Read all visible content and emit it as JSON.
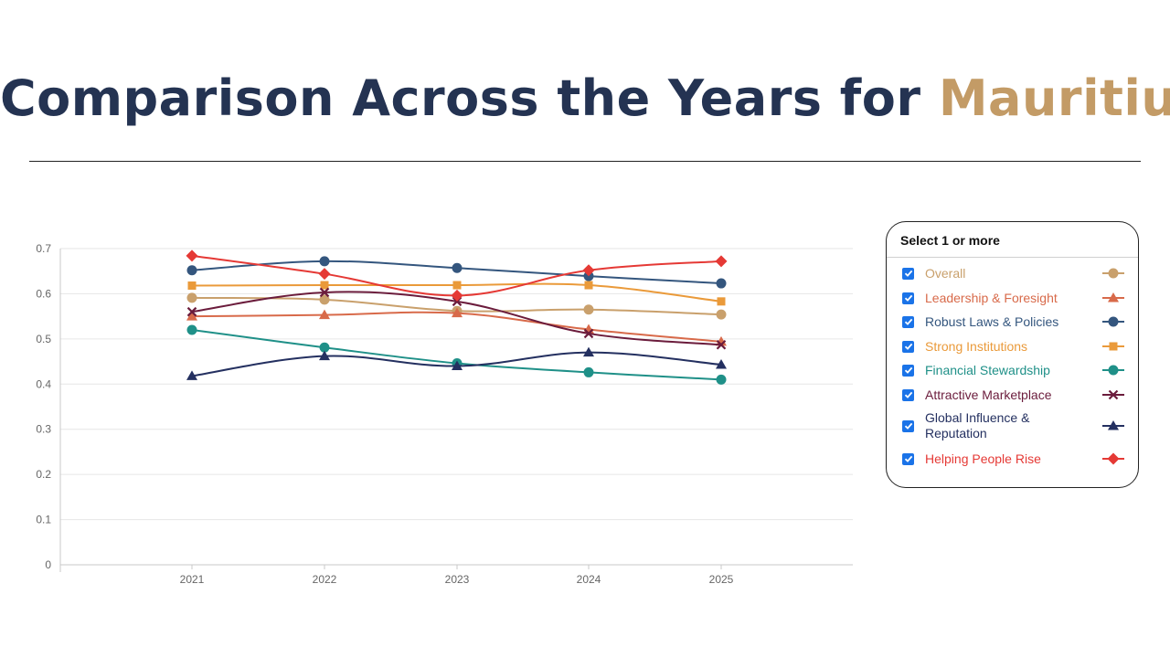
{
  "page": {
    "title_prefix": "Comparison Across the Years for ",
    "title_country": "Mauritius"
  },
  "legend": {
    "header": "Select 1 or more"
  },
  "colors": {
    "title": "#243352",
    "accent": "#c39b66",
    "checkbox": "#1a73e8"
  },
  "chart_data": {
    "type": "line",
    "categories": [
      "2021",
      "2022",
      "2023",
      "2024",
      "2025"
    ],
    "ylim": [
      0,
      0.7
    ],
    "yticks": [
      "0",
      "0.1",
      "0.2",
      "0.3",
      "0.4",
      "0.5",
      "0.6",
      "0.7"
    ],
    "grid": true,
    "legend_position": "right",
    "series": [
      {
        "name": "Overall",
        "color": "#c9a06c",
        "marker": "circle",
        "checked": true,
        "values": [
          0.591,
          0.587,
          0.562,
          0.565,
          0.554
        ]
      },
      {
        "name": "Leadership & Foresight",
        "color": "#d86a4a",
        "marker": "triangle",
        "checked": true,
        "values": [
          0.55,
          0.553,
          0.557,
          0.521,
          0.494
        ]
      },
      {
        "name": "Robust Laws & Policies",
        "color": "#34567e",
        "marker": "circle",
        "checked": true,
        "values": [
          0.652,
          0.672,
          0.657,
          0.639,
          0.623
        ]
      },
      {
        "name": "Strong Institutions",
        "color": "#ea9a3a",
        "marker": "square",
        "checked": true,
        "values": [
          0.618,
          0.619,
          0.619,
          0.619,
          0.583
        ]
      },
      {
        "name": "Financial Stewardship",
        "color": "#1f9088",
        "marker": "circle",
        "checked": true,
        "values": [
          0.52,
          0.481,
          0.446,
          0.426,
          0.41
        ]
      },
      {
        "name": "Attractive Marketplace",
        "color": "#6b1c3c",
        "marker": "x",
        "checked": true,
        "values": [
          0.56,
          0.603,
          0.583,
          0.512,
          0.487
        ]
      },
      {
        "name": "Global Influence & Reputation",
        "color": "#243060",
        "marker": "triangle",
        "checked": true,
        "values": [
          0.418,
          0.462,
          0.44,
          0.47,
          0.443
        ]
      },
      {
        "name": "Helping People Rise",
        "color": "#e53935",
        "marker": "diamond",
        "checked": true,
        "values": [
          0.684,
          0.644,
          0.596,
          0.652,
          0.672
        ]
      }
    ]
  }
}
